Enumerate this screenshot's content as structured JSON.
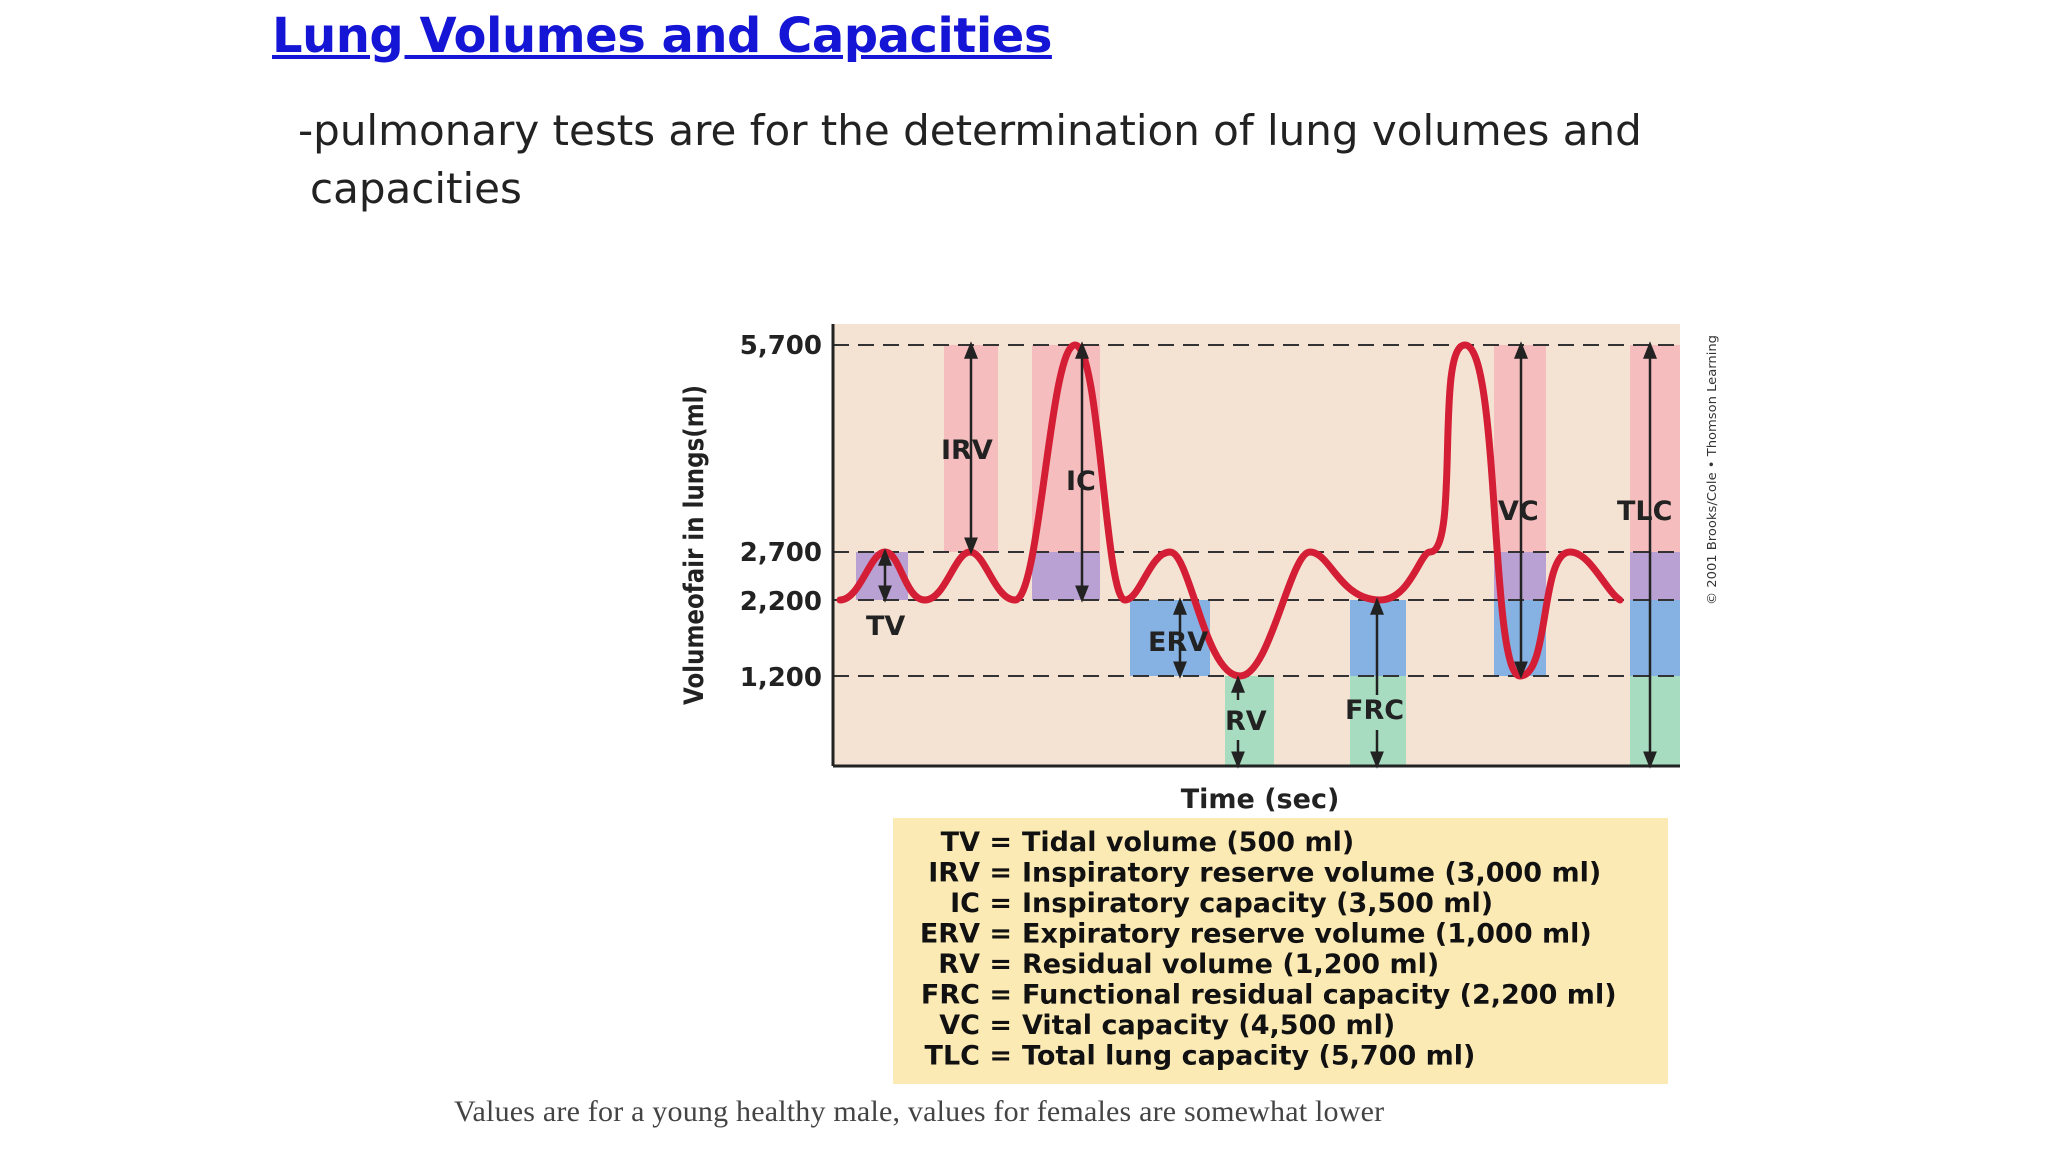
{
  "slide": {
    "title": "Lung Volumes and Capacities",
    "subtitle_line1": "-pulmonary tests are for the determination of lung volumes and",
    "subtitle_line2": "capacities"
  },
  "diagram": {
    "y_axis_label": "Volumeofair in lungs(ml)",
    "x_axis_label": "Time (sec)",
    "y_ticks": [
      "5,700",
      "2,700",
      "2,200",
      "1,200"
    ],
    "copyright": "© 2001 Brooks/Cole • Thomson Learning",
    "region_labels": {
      "tv": "TV",
      "irv": "IRV",
      "ic": "IC",
      "erv": "ERV",
      "rv": "RV",
      "frc": "FRC",
      "vc": "VC",
      "tlc": "TLC"
    },
    "legend": [
      {
        "abbr": "TV =",
        "text": "Tidal volume (500 ml)"
      },
      {
        "abbr": "IRV =",
        "text": "Inspiratory reserve volume (3,000 ml)"
      },
      {
        "abbr": "IC =",
        "text": "Inspiratory capacity (3,500 ml)"
      },
      {
        "abbr": "ERV =",
        "text": "Expiratory reserve volume (1,000 ml)"
      },
      {
        "abbr": "RV =",
        "text": "Residual volume (1,200 ml)"
      },
      {
        "abbr": "FRC =",
        "text": "Functional residual capacity (2,200 ml)"
      },
      {
        "abbr": "VC =",
        "text": "Vital capacity (4,500 ml)"
      },
      {
        "abbr": "TLC =",
        "text": "Total lung capacity (5,700 ml)"
      }
    ],
    "colors": {
      "plot_bg": "#f4e3d3",
      "trace": "#d41e35",
      "irv_band": "#f4b6b9",
      "tidal_band": "#b9a1d3",
      "erv_band": "#86b1e3",
      "rv_band": "#a8dcc0",
      "legend_bg": "#fbeab4"
    }
  },
  "caption": "Values are for a young healthy male, values for females are somewhat lower"
}
